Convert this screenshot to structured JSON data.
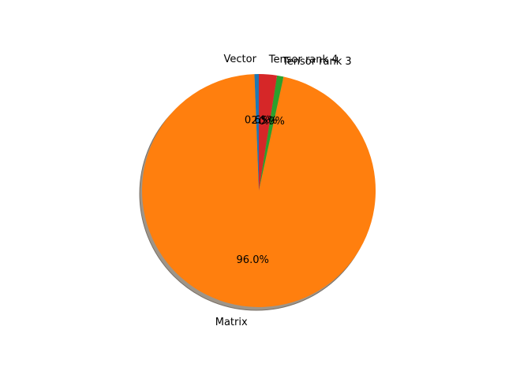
{
  "chart_data": {
    "type": "pie",
    "slices": [
      {
        "label": "Vector",
        "value": 0.6,
        "percent_label": "0.6%",
        "color": "#1f77b4"
      },
      {
        "label": "Matrix",
        "value": 96.0,
        "percent_label": "96.0%",
        "color": "#ff7f0e"
      },
      {
        "label": "Tensor rank 3",
        "value": 0.9,
        "percent_label": "0.9%",
        "color": "#2ca02c"
      },
      {
        "label": "Tensor rank 4",
        "value": 2.5,
        "percent_label": "2.5%",
        "color": "#d62728"
      }
    ],
    "start_angle": 90,
    "direction": "counterclockwise",
    "shadow": true,
    "legend": false
  }
}
